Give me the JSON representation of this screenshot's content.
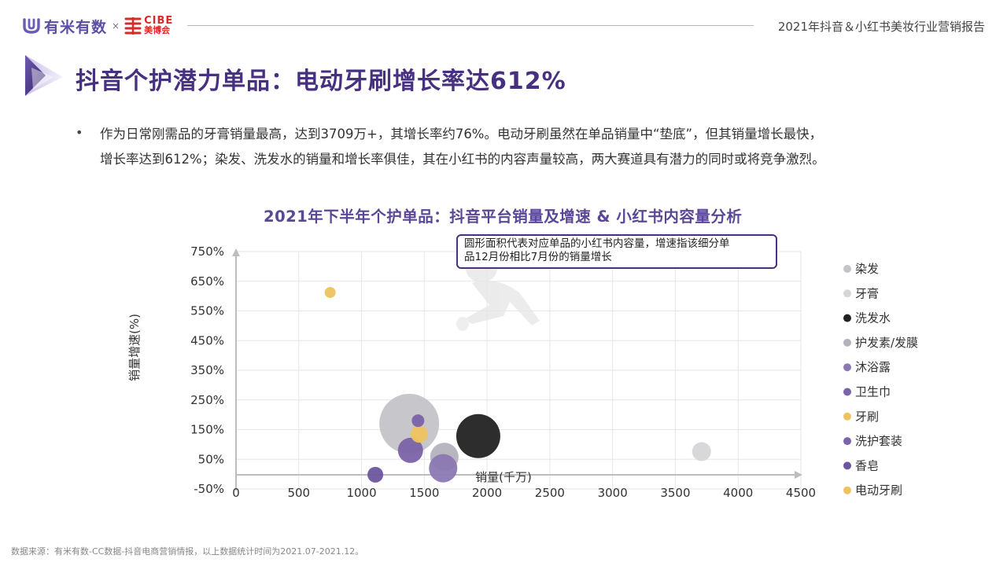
{
  "header": {
    "logo_text": "有米有数",
    "logo_separator": "×",
    "partner_logo_top": "CIBE",
    "partner_logo_bottom": "美博会",
    "report_title": "2021年抖音＆小红书美妆行业营销报告"
  },
  "page_title": "抖音个护潜力单品：电动牙刷增长率达612%",
  "bullet_symbol": "•",
  "paragraph": {
    "line1": "作为日常刚需品的牙膏销量最高，达到3709万+，其增长率约76%。电动牙刷虽然在单品销量中“垫底”，但其销量增长最快，",
    "line2": "增长率达到612%；染发、洗发水的销量和增长率俱佳，其在小红书的内容声量较高，两大赛道具有潜力的同时或将竞争激烈。"
  },
  "annotation": {
    "line1": "圆形面积代表对应单品的小红书内容量，增速指该细分单",
    "line2": "品12月份相比7月份的销量增长"
  },
  "source": "数据来源：有米有数-CC数据-抖音电商营销情报，以上数据统计时间为2021.07-2021.12。",
  "colors": {
    "title_purple": "#46307f",
    "chart_title_purple": "#5a4796",
    "annotation_border": "#4a2f7f"
  },
  "chart_data": {
    "type": "scatter",
    "bubble": true,
    "title": "2021年下半年个护单品：抖音平台销量及增速 & 小红书内容量分析",
    "xlabel": "销量(千万)",
    "ylabel": "销量增速(%)",
    "xlim": [
      0,
      4500
    ],
    "ylim": [
      -50,
      750
    ],
    "x_ticks": [
      0,
      500,
      1000,
      1500,
      2000,
      2500,
      3000,
      3500,
      4000,
      4500
    ],
    "y_ticks": [
      -50,
      50,
      150,
      250,
      350,
      450,
      550,
      650,
      750
    ],
    "grid": true,
    "legend_position": "right",
    "series": [
      {
        "name": "染发",
        "color": "#c4c4c8",
        "x": 1380,
        "y": 170,
        "size": 38
      },
      {
        "name": "牙膏",
        "color": "#d6d6d8",
        "x": 3709,
        "y": 76,
        "size": 12
      },
      {
        "name": "洗发水",
        "color": "#222222",
        "x": 1930,
        "y": 128,
        "size": 28
      },
      {
        "name": "护发素/发膜",
        "color": "#b4b2bc",
        "x": 1660,
        "y": 58,
        "size": 18
      },
      {
        "name": "沐浴露",
        "color": "#8b78b3",
        "x": 1650,
        "y": 20,
        "size": 18
      },
      {
        "name": "卫生巾",
        "color": "#7a63a8",
        "x": 1450,
        "y": 180,
        "size": 8
      },
      {
        "name": "牙刷",
        "color": "#eec35f",
        "x": 1460,
        "y": 135,
        "size": 11
      },
      {
        "name": "洗护套装",
        "color": "#7a63a8",
        "x": 1390,
        "y": 80,
        "size": 16
      },
      {
        "name": "香皂",
        "color": "#6d56a0",
        "x": 1110,
        "y": -2,
        "size": 10
      },
      {
        "name": "电动牙刷",
        "color": "#eec35f",
        "x": 750,
        "y": 612,
        "size": 7
      }
    ]
  }
}
